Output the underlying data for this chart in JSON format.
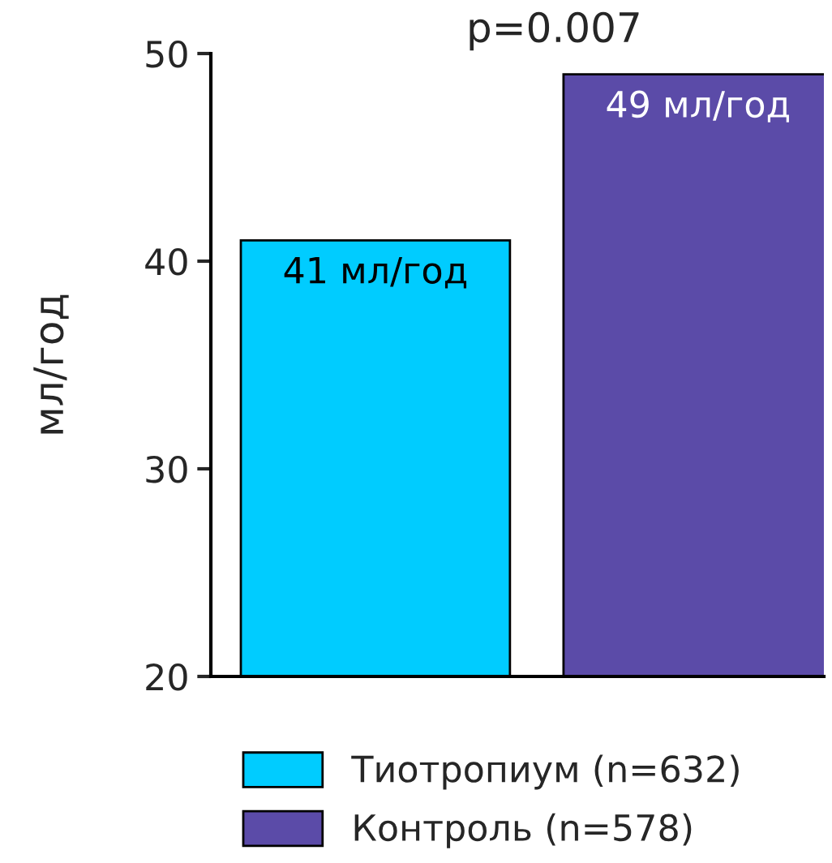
{
  "chart_data": {
    "type": "bar",
    "ylabel": "мл/год",
    "categories": [
      null,
      null
    ],
    "series": [
      {
        "name": "Тиотропиум (n=632)",
        "color": "#00ccff",
        "values": [
          41,
          null
        ],
        "value_labels": [
          "41 мл/год",
          null
        ]
      },
      {
        "name": "Контроль (n=578)",
        "color": "#5b4ba8",
        "values": [
          null,
          49
        ],
        "value_labels": [
          null,
          "49 мл/год"
        ]
      }
    ],
    "ylim": [
      20,
      50
    ],
    "yticks": [
      20,
      30,
      40,
      50
    ],
    "annotations": [
      "p=0.007"
    ],
    "grid": false,
    "legend": "bottom",
    "tick_labels": "y"
  }
}
